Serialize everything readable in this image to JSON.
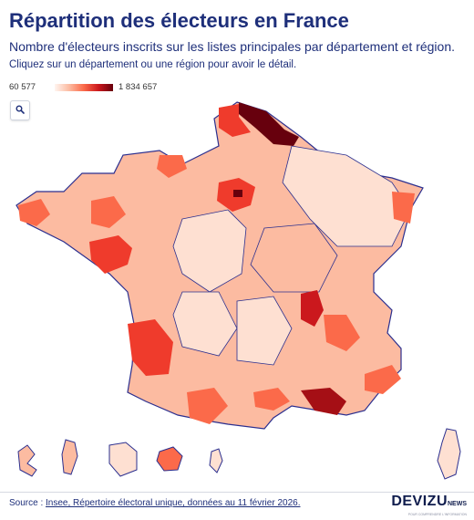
{
  "header": {
    "title": "Répartition des électeurs en France",
    "subtitle": "Nombre d'électeurs inscrits sur les listes principales par département et région.",
    "instruction": "Cliquez sur un département ou une région pour avoir le détail."
  },
  "legend": {
    "min_label": "60 577",
    "max_label": "1 834 657",
    "min_value": 60577,
    "max_value": 1834657,
    "color_low": "#fff5f0",
    "color_high": "#67000d"
  },
  "controls": {
    "zoom_icon": "search-icon"
  },
  "map": {
    "type": "choropleth",
    "colors": {
      "very_dark": "#67000d",
      "dark": "#a50f15",
      "strong": "#ef3b2c",
      "medium": "#fb6a4a",
      "light_medium": "#fc9272",
      "light": "#fcbba1",
      "very_light": "#fee0d2",
      "border_region": "#2b2f8f",
      "border_department": "#ffffff"
    }
  },
  "footer": {
    "source_prefix": "Source : ",
    "source_link": "Insee, Répertoire électoral unique, données au 11 février 2026.",
    "logo": "DEVIZU",
    "logo_suffix": "NEWS",
    "logo_tagline": "POUR COMPRENDRE L'INFORMATION"
  }
}
